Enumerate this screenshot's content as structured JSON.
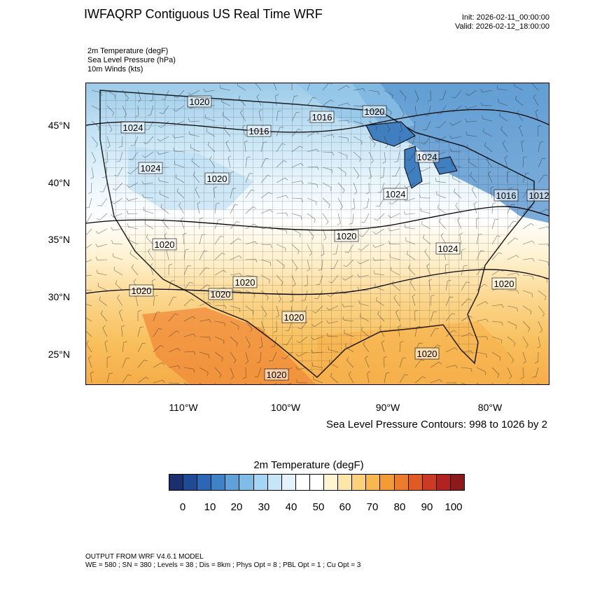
{
  "header": {
    "title": "IWFAQRP Contiguous US Real Time WRF",
    "init": "Init: 2026-02-11_00:00:00",
    "valid": "Valid: 2026-02-12_18:00:00"
  },
  "fields": [
    "2m Temperature   (degF)",
    "Sea Level Pressure   (hPa)",
    "10m Winds   (kts)"
  ],
  "map": {
    "lat_labels": [
      "45°N",
      "40°N",
      "35°N",
      "30°N",
      "25°N"
    ],
    "lon_labels": [
      "110°W",
      "100°W",
      "90°W",
      "80°W"
    ],
    "isobar_labels": [
      "1020",
      "1016",
      "1020",
      "1024",
      "1016",
      "1024",
      "1020",
      "1024",
      "1024",
      "1016",
      "1012",
      "1020",
      "1020",
      "1024",
      "1020",
      "1020",
      "1020",
      "1020",
      "1020",
      "1020",
      "1020"
    ],
    "contour_note": "Sea Level Pressure Contours: 998 to 1026 by 2"
  },
  "colorbar": {
    "title": "2m Temperature  (degF)",
    "colors": [
      "#1b2f6e",
      "#1f4a96",
      "#2c66b5",
      "#3f82c8",
      "#5fa1d8",
      "#80bde6",
      "#a4d5f2",
      "#c6e6f7",
      "#e4f3fb",
      "#ffffff",
      "#ffffff",
      "#fff4d2",
      "#fde7a8",
      "#fbd27a",
      "#f8b74f",
      "#f39b36",
      "#ec7b2c",
      "#e05a26",
      "#cb3a22",
      "#b22220",
      "#8c1a1a"
    ],
    "ticks": [
      "0",
      "10",
      "20",
      "30",
      "40",
      "50",
      "60",
      "70",
      "80",
      "90",
      "100"
    ]
  },
  "footer": {
    "line1": "OUTPUT FROM WRF V4.6.1 MODEL",
    "line2": "WE = 580 ; SN = 380 ; Levels = 38 ; Dis = 8km ; Phys Opt = 8 ; PBL Opt = 1 ; Cu Opt = 3"
  }
}
